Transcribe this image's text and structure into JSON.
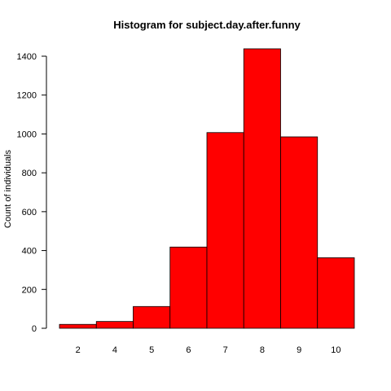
{
  "chart_data": {
    "type": "bar",
    "title": "Histogram for subject.day.after.funny",
    "xlabel": "",
    "ylabel": "Count of individuals",
    "categories": [
      "2",
      "4",
      "5",
      "6",
      "7",
      "8",
      "9",
      "10"
    ],
    "values": [
      20,
      35,
      112,
      418,
      1007,
      1438,
      985,
      363
    ],
    "ylim": [
      0,
      1400
    ],
    "yticks": [
      0,
      200,
      400,
      600,
      800,
      1000,
      1200,
      1400
    ],
    "bar_color": "#ff0000",
    "grid": false,
    "legend": "none"
  }
}
